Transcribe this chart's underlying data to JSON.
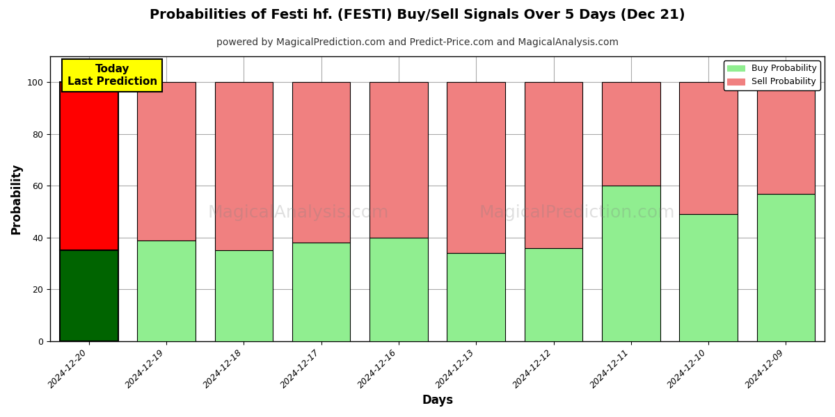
{
  "title": "Probabilities of Festi hf. (FESTI) Buy/Sell Signals Over 5 Days (Dec 21)",
  "subtitle": "powered by MagicalPrediction.com and Predict-Price.com and MagicalAnalysis.com",
  "xlabel": "Days",
  "ylabel": "Probability",
  "categories": [
    "2024-12-20",
    "2024-12-19",
    "2024-12-18",
    "2024-12-17",
    "2024-12-16",
    "2024-12-13",
    "2024-12-12",
    "2024-12-11",
    "2024-12-10",
    "2024-12-09"
  ],
  "buy_values": [
    35,
    39,
    35,
    38,
    40,
    34,
    36,
    60,
    49,
    57
  ],
  "sell_values": [
    65,
    61,
    65,
    62,
    60,
    66,
    64,
    40,
    51,
    43
  ],
  "today_buy_color": "#006400",
  "today_sell_color": "#ff0000",
  "normal_buy_color": "#90EE90",
  "normal_sell_color": "#F08080",
  "bar_edge_color": "#000000",
  "ylim": [
    0,
    110
  ],
  "yticks": [
    0,
    20,
    40,
    60,
    80,
    100
  ],
  "dashed_line_y": 110,
  "legend_buy_label": "Buy Probability",
  "legend_sell_label": "Sell Probability",
  "annotation_text": "Today\nLast Prediction",
  "watermark_text1": "MagicalAnalysis.com",
  "watermark_text2": "MagicalPrediction.com",
  "title_fontsize": 14,
  "subtitle_fontsize": 10,
  "axis_label_fontsize": 12,
  "tick_fontsize": 9,
  "background_color": "#ffffff",
  "grid_color": "#aaaaaa"
}
